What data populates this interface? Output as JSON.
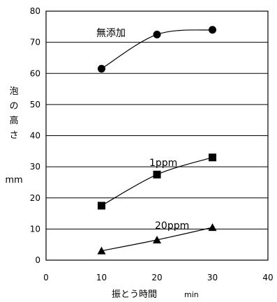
{
  "chart_data": {
    "type": "line",
    "xlabel": "振とう時間",
    "xlabel_unit": "min",
    "ylabel_chars": [
      "泡",
      "の",
      "高",
      "さ"
    ],
    "ylabel_unit": "mm",
    "xlim": [
      0,
      40
    ],
    "ylim": [
      0,
      80
    ],
    "x_ticks": [
      "0",
      "10",
      "20",
      "30",
      "40"
    ],
    "y_ticks": [
      "0",
      "10",
      "20",
      "30",
      "40",
      "50",
      "60",
      "70",
      "80"
    ],
    "grid": "horizontal",
    "series": [
      {
        "name": "無添加",
        "marker": "circle",
        "x": [
          10,
          20,
          30
        ],
        "values": [
          61.5,
          72.5,
          74
        ]
      },
      {
        "name": "1ppm",
        "marker": "square",
        "x": [
          10,
          20,
          30
        ],
        "values": [
          17.5,
          27.5,
          33
        ]
      },
      {
        "name": "20ppm",
        "marker": "triangle",
        "x": [
          10,
          20,
          30
        ],
        "values": [
          3,
          6.5,
          10.5
        ]
      }
    ]
  }
}
